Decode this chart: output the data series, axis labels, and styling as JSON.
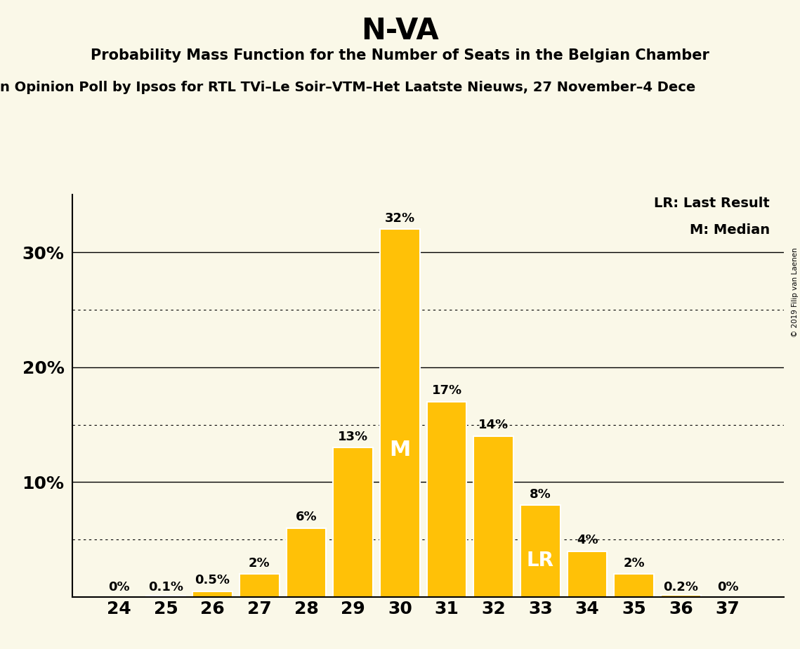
{
  "title": "N-VA",
  "subtitle": "Probability Mass Function for the Number of Seats in the Belgian Chamber",
  "sub_subtitle": "n Opinion Poll by Ipsos for RTL TVi–Le Soir–VTM–Het Laatste Nieuws, 27 November–4 Dece",
  "copyright": "© 2019 Filip van Laenen",
  "background_color": "#faf8e8",
  "bar_color": "#FFC107",
  "seats": [
    24,
    25,
    26,
    27,
    28,
    29,
    30,
    31,
    32,
    33,
    34,
    35,
    36,
    37
  ],
  "values": [
    0.0,
    0.1,
    0.5,
    2.0,
    6.0,
    13.0,
    32.0,
    17.0,
    14.0,
    8.0,
    4.0,
    2.0,
    0.2,
    0.0
  ],
  "labels": [
    "0%",
    "0.1%",
    "0.5%",
    "2%",
    "6%",
    "13%",
    "32%",
    "17%",
    "14%",
    "8%",
    "4%",
    "2%",
    "0.2%",
    "0%"
  ],
  "median_seat": 30,
  "lr_seat": 33,
  "solid_gridlines": [
    10,
    20,
    30
  ],
  "dotted_gridlines": [
    5,
    15,
    25
  ],
  "ylim": [
    0,
    35
  ],
  "xlim_left": 23.0,
  "xlim_right": 38.2
}
